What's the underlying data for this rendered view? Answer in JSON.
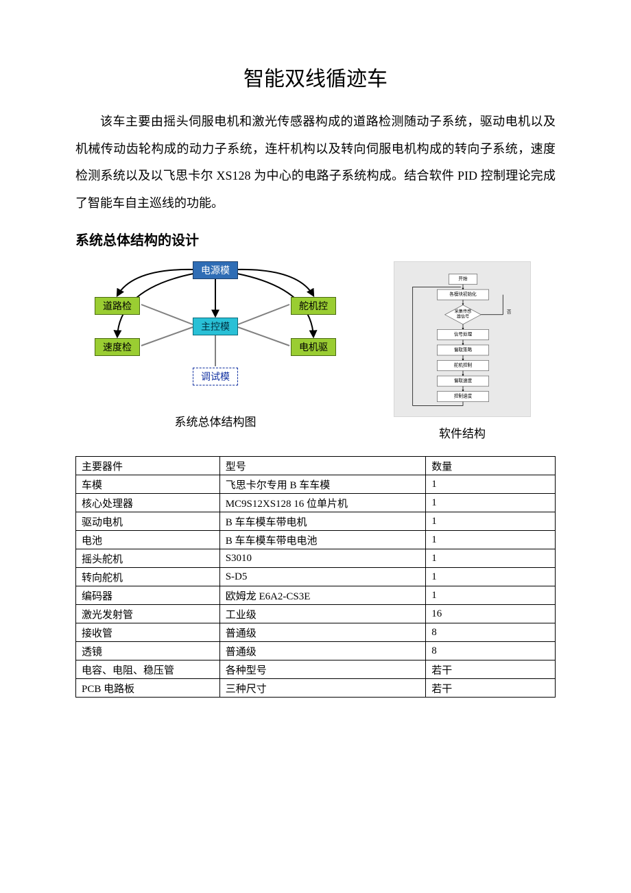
{
  "title": "智能双线循迹车",
  "paragraph": "该车主要由摇头伺服电机和激光传感器构成的道路检测随动子系统，驱动电机以及机械传动齿轮构成的动力子系统，连杆机构以及转向伺服电机构成的转向子系统，速度检测系统以及以飞思卡尔 XS128 为中心的电路子系统构成。结合软件 PID 控制理论完成了智能车自主巡线的功能。",
  "section_heading": "系统总体结构的设计",
  "block_diagram": {
    "nodes": {
      "top": {
        "label": "电源模",
        "bg": "#2f6db5",
        "fg": "#ffffff"
      },
      "center": {
        "label": "主控模",
        "bg": "#29c0d6",
        "fg": "#003040"
      },
      "left1": {
        "label": "道路检",
        "bg": "#9acd32",
        "fg": "#000000"
      },
      "left2": {
        "label": "速度检",
        "bg": "#9acd32",
        "fg": "#000000"
      },
      "right1": {
        "label": "舵机控",
        "bg": "#9acd32",
        "fg": "#000000"
      },
      "right2": {
        "label": "电机驱",
        "bg": "#9acd32",
        "fg": "#000000"
      },
      "bottom": {
        "label": "调试模",
        "bg": "#ffffff",
        "fg": "#1030a0"
      }
    },
    "caption": "系统总体结构图",
    "arc_color": "#000000",
    "line_color": "#808080"
  },
  "flowchart": {
    "caption": "软件结构",
    "bg": "#e9e9e9",
    "box_bg": "#ffffff",
    "box_border": "#6a6a6a",
    "line": "#000000",
    "nodes": [
      {
        "label": "开始",
        "shape": "rect"
      },
      {
        "label": "各模块初始化",
        "shape": "rect"
      },
      {
        "label": "采集传感器信号",
        "shape": "diamond",
        "side": "否"
      },
      {
        "label": "信号处理",
        "shape": "rect"
      },
      {
        "label": "偏取策略",
        "shape": "rect"
      },
      {
        "label": "舵机控制",
        "shape": "rect"
      },
      {
        "label": "偏取速度",
        "shape": "rect"
      },
      {
        "label": "控制速度",
        "shape": "rect"
      }
    ]
  },
  "table": {
    "columns": [
      "主要器件",
      "型号",
      "数量"
    ],
    "col_widths": [
      "30%",
      "43%",
      "27%"
    ],
    "rows": [
      [
        "车模",
        "飞思卡尔专用 B 车车模",
        "1"
      ],
      [
        "核心处理器",
        "MC9S12XS128 16 位单片机",
        "1"
      ],
      [
        "驱动电机",
        "B 车车模车带电机",
        "1"
      ],
      [
        "电池",
        "B 车车模车带电电池",
        "1"
      ],
      [
        "摇头舵机",
        "S3010",
        "1"
      ],
      [
        "转向舵机",
        "S-D5",
        "1"
      ],
      [
        "编码器",
        "欧姆龙 E6A2-CS3E",
        "1"
      ],
      [
        "激光发射管",
        "工业级",
        "16"
      ],
      [
        "接收管",
        "普通级",
        "8"
      ],
      [
        "透镜",
        "普通级",
        "8"
      ],
      [
        "电容、电阻、稳压管",
        "各种型号",
        "若干"
      ],
      [
        "PCB 电路板",
        "三种尺寸",
        "若干"
      ]
    ]
  }
}
